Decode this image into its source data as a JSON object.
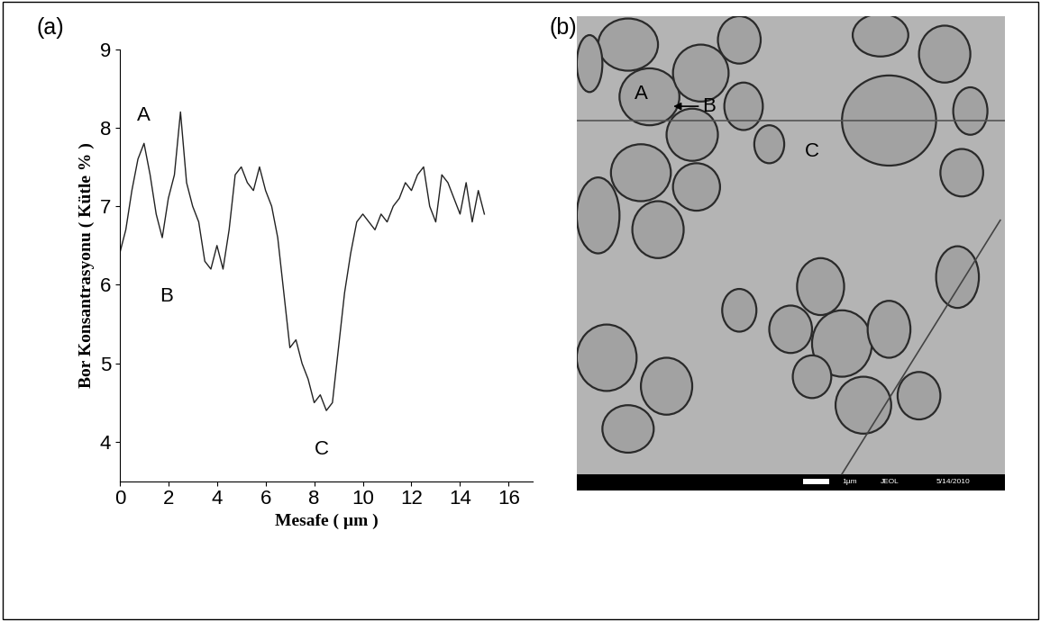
{
  "chart_data": {
    "type": "line",
    "panel_label": "(a)",
    "x_label": "Mesafe ( µm )",
    "y_label": "Bor Konsantrasyonu ( Kütle % )",
    "x": [
      0,
      0.25,
      0.5,
      0.75,
      1,
      1.25,
      1.5,
      1.75,
      2,
      2.25,
      2.5,
      2.75,
      3,
      3.25,
      3.5,
      3.75,
      4,
      4.25,
      4.5,
      4.75,
      5,
      5.25,
      5.5,
      5.75,
      6,
      6.25,
      6.5,
      6.75,
      7,
      7.25,
      7.5,
      7.75,
      8,
      8.25,
      8.5,
      8.75,
      9,
      9.25,
      9.5,
      9.75,
      10,
      10.25,
      10.5,
      10.75,
      11,
      11.25,
      11.5,
      11.75,
      12,
      12.25,
      12.5,
      12.75,
      13,
      13.25,
      13.5,
      13.75,
      14,
      14.25,
      14.5,
      14.75,
      15
    ],
    "values": [
      6.4,
      6.7,
      7.2,
      7.6,
      7.8,
      7.4,
      6.9,
      6.6,
      7.1,
      7.4,
      8.2,
      7.3,
      7.0,
      6.8,
      6.3,
      6.2,
      6.5,
      6.2,
      6.7,
      7.4,
      7.5,
      7.3,
      7.2,
      7.5,
      7.2,
      7.0,
      6.6,
      5.9,
      5.2,
      5.3,
      5.0,
      4.8,
      4.5,
      4.6,
      4.4,
      4.5,
      5.2,
      5.9,
      6.4,
      6.8,
      6.9,
      6.8,
      6.7,
      6.9,
      6.8,
      7.0,
      7.1,
      7.3,
      7.2,
      7.4,
      7.5,
      7.0,
      6.8,
      7.4,
      7.3,
      7.1,
      6.9,
      7.3,
      6.8,
      7.2,
      6.9
    ],
    "color": "#222222",
    "xlim": [
      0,
      17
    ],
    "xticks": [
      0,
      2,
      4,
      6,
      8,
      10,
      12,
      14,
      16
    ],
    "ylim": [
      3.5,
      9
    ],
    "yticks": [
      4,
      5,
      6,
      7,
      8,
      9
    ],
    "grid": false,
    "annotations": [
      {
        "text": "A",
        "x": 1.0,
        "y": 8.15
      },
      {
        "text": "B",
        "x": 1.9,
        "y": 5.85
      },
      {
        "text": "C",
        "x": 8.3,
        "y": 3.9
      }
    ]
  },
  "micrograph": {
    "panel_label": "(b)",
    "labels": [
      "A",
      "B",
      "C"
    ],
    "scale_bar": "1µm",
    "instrument": "JEOL",
    "date": "5/14/2010"
  }
}
